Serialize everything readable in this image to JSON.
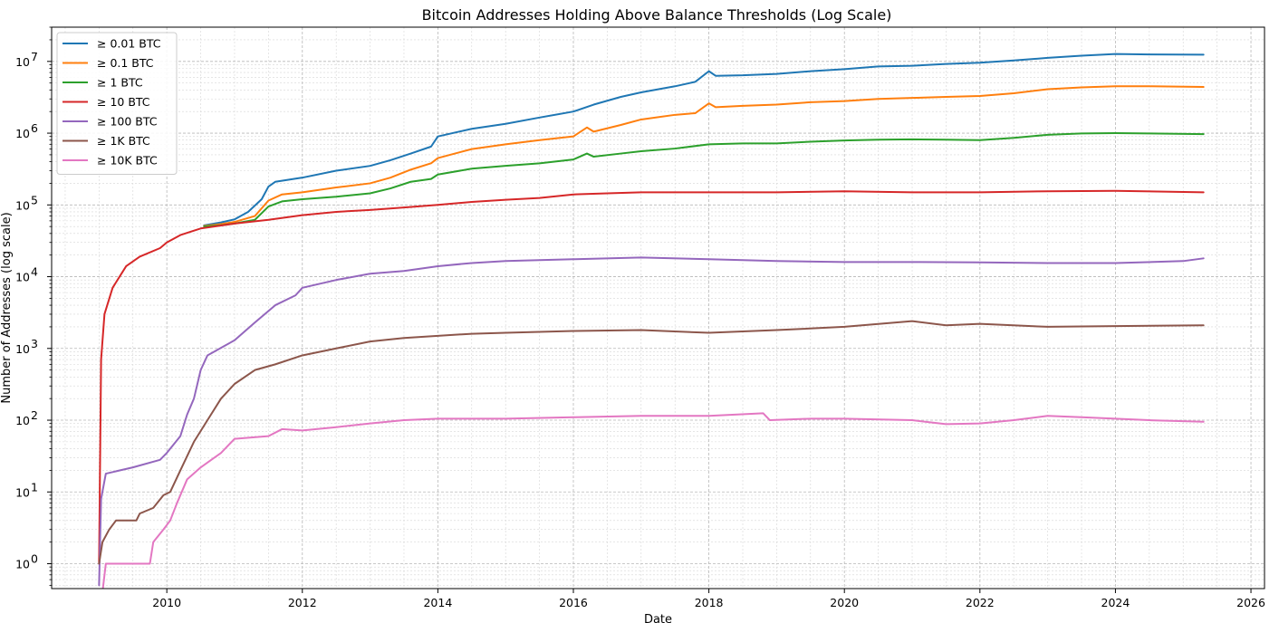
{
  "chart_data": {
    "type": "line",
    "title": "Bitcoin Addresses Holding Above Balance Thresholds (Log Scale)",
    "xlabel": "Date",
    "ylabel": "Number of Addresses (log scale)",
    "y_scale": "log",
    "xlim": [
      2008.3,
      2026.2
    ],
    "ylim": [
      0.45,
      30000000
    ],
    "x_ticks": [
      {
        "value": 2010,
        "label": "2010"
      },
      {
        "value": 2012,
        "label": "2012"
      },
      {
        "value": 2014,
        "label": "2014"
      },
      {
        "value": 2016,
        "label": "2016"
      },
      {
        "value": 2018,
        "label": "2018"
      },
      {
        "value": 2020,
        "label": "2020"
      },
      {
        "value": 2022,
        "label": "2022"
      },
      {
        "value": 2024,
        "label": "2024"
      },
      {
        "value": 2026,
        "label": "2026"
      }
    ],
    "y_ticks": [
      {
        "value": 1,
        "base": "10",
        "exp": "0"
      },
      {
        "value": 10,
        "base": "10",
        "exp": "1"
      },
      {
        "value": 100,
        "base": "10",
        "exp": "2"
      },
      {
        "value": 1000,
        "base": "10",
        "exp": "3"
      },
      {
        "value": 10000,
        "base": "10",
        "exp": "4"
      },
      {
        "value": 100000,
        "base": "10",
        "exp": "5"
      },
      {
        "value": 1000000,
        "base": "10",
        "exp": "6"
      },
      {
        "value": 10000000,
        "base": "10",
        "exp": "7"
      }
    ],
    "grid": "both (major and minor), dashed",
    "legend_position": "top-left",
    "series": [
      {
        "name": "≥ 0.01 BTC",
        "color": "#1f77b4",
        "points": [
          [
            2010.55,
            52000
          ],
          [
            2010.8,
            57000
          ],
          [
            2011.0,
            63000
          ],
          [
            2011.2,
            80000
          ],
          [
            2011.4,
            120000
          ],
          [
            2011.5,
            180000
          ],
          [
            2011.6,
            210000
          ],
          [
            2012.0,
            240000
          ],
          [
            2012.5,
            300000
          ],
          [
            2013.0,
            350000
          ],
          [
            2013.3,
            420000
          ],
          [
            2013.6,
            520000
          ],
          [
            2013.9,
            650000
          ],
          [
            2014.0,
            900000
          ],
          [
            2014.5,
            1150000
          ],
          [
            2015.0,
            1350000
          ],
          [
            2015.5,
            1650000
          ],
          [
            2016.0,
            2000000
          ],
          [
            2016.3,
            2500000
          ],
          [
            2016.7,
            3200000
          ],
          [
            2017.0,
            3700000
          ],
          [
            2017.5,
            4500000
          ],
          [
            2017.8,
            5200000
          ],
          [
            2018.0,
            7300000
          ],
          [
            2018.1,
            6300000
          ],
          [
            2018.5,
            6400000
          ],
          [
            2019.0,
            6700000
          ],
          [
            2019.5,
            7300000
          ],
          [
            2020.0,
            7800000
          ],
          [
            2020.5,
            8500000
          ],
          [
            2021.0,
            8700000
          ],
          [
            2021.5,
            9200000
          ],
          [
            2022.0,
            9600000
          ],
          [
            2022.5,
            10300000
          ],
          [
            2023.0,
            11200000
          ],
          [
            2023.5,
            12000000
          ],
          [
            2024.0,
            12700000
          ],
          [
            2024.5,
            12500000
          ],
          [
            2025.3,
            12400000
          ]
        ]
      },
      {
        "name": "≥ 0.1 BTC",
        "color": "#ff7f0e",
        "points": [
          [
            2010.55,
            51000
          ],
          [
            2010.8,
            54000
          ],
          [
            2011.0,
            58000
          ],
          [
            2011.3,
            70000
          ],
          [
            2011.5,
            115000
          ],
          [
            2011.7,
            140000
          ],
          [
            2012.0,
            150000
          ],
          [
            2012.5,
            175000
          ],
          [
            2013.0,
            200000
          ],
          [
            2013.3,
            240000
          ],
          [
            2013.6,
            310000
          ],
          [
            2013.9,
            380000
          ],
          [
            2014.0,
            450000
          ],
          [
            2014.5,
            600000
          ],
          [
            2015.0,
            700000
          ],
          [
            2015.5,
            800000
          ],
          [
            2016.0,
            900000
          ],
          [
            2016.2,
            1200000
          ],
          [
            2016.3,
            1050000
          ],
          [
            2016.7,
            1300000
          ],
          [
            2017.0,
            1550000
          ],
          [
            2017.5,
            1800000
          ],
          [
            2017.8,
            1900000
          ],
          [
            2018.0,
            2600000
          ],
          [
            2018.1,
            2300000
          ],
          [
            2018.5,
            2400000
          ],
          [
            2019.0,
            2500000
          ],
          [
            2019.5,
            2700000
          ],
          [
            2020.0,
            2800000
          ],
          [
            2020.5,
            3000000
          ],
          [
            2021.0,
            3100000
          ],
          [
            2021.5,
            3200000
          ],
          [
            2022.0,
            3300000
          ],
          [
            2022.5,
            3600000
          ],
          [
            2023.0,
            4100000
          ],
          [
            2023.5,
            4350000
          ],
          [
            2024.0,
            4500000
          ],
          [
            2024.5,
            4500000
          ],
          [
            2025.3,
            4400000
          ]
        ]
      },
      {
        "name": "≥ 1 BTC",
        "color": "#2ca02c",
        "points": [
          [
            2010.55,
            50000
          ],
          [
            2010.8,
            52000
          ],
          [
            2011.0,
            55000
          ],
          [
            2011.3,
            62000
          ],
          [
            2011.5,
            95000
          ],
          [
            2011.7,
            112000
          ],
          [
            2012.0,
            120000
          ],
          [
            2012.5,
            130000
          ],
          [
            2013.0,
            145000
          ],
          [
            2013.3,
            170000
          ],
          [
            2013.6,
            210000
          ],
          [
            2013.9,
            230000
          ],
          [
            2014.0,
            265000
          ],
          [
            2014.5,
            320000
          ],
          [
            2015.0,
            350000
          ],
          [
            2015.5,
            380000
          ],
          [
            2016.0,
            430000
          ],
          [
            2016.2,
            520000
          ],
          [
            2016.3,
            470000
          ],
          [
            2016.7,
            520000
          ],
          [
            2017.0,
            560000
          ],
          [
            2017.5,
            610000
          ],
          [
            2018.0,
            700000
          ],
          [
            2018.5,
            720000
          ],
          [
            2019.0,
            720000
          ],
          [
            2019.5,
            760000
          ],
          [
            2020.0,
            790000
          ],
          [
            2020.5,
            810000
          ],
          [
            2021.0,
            820000
          ],
          [
            2021.5,
            810000
          ],
          [
            2022.0,
            800000
          ],
          [
            2022.5,
            860000
          ],
          [
            2023.0,
            950000
          ],
          [
            2023.5,
            990000
          ],
          [
            2024.0,
            1000000
          ],
          [
            2024.5,
            990000
          ],
          [
            2025.3,
            970000
          ]
        ]
      },
      {
        "name": "≥ 10 BTC",
        "color": "#d62728",
        "points": [
          [
            2009.0,
            1
          ],
          [
            2009.03,
            700
          ],
          [
            2009.08,
            3000
          ],
          [
            2009.2,
            7000
          ],
          [
            2009.4,
            14000
          ],
          [
            2009.6,
            19000
          ],
          [
            2009.9,
            25000
          ],
          [
            2010.0,
            30000
          ],
          [
            2010.2,
            38000
          ],
          [
            2010.5,
            47000
          ],
          [
            2011.0,
            55000
          ],
          [
            2011.5,
            62000
          ],
          [
            2012.0,
            72000
          ],
          [
            2012.5,
            80000
          ],
          [
            2013.0,
            85000
          ],
          [
            2013.5,
            92000
          ],
          [
            2014.0,
            100000
          ],
          [
            2014.5,
            110000
          ],
          [
            2015.0,
            118000
          ],
          [
            2015.5,
            125000
          ],
          [
            2016.0,
            140000
          ],
          [
            2016.5,
            145000
          ],
          [
            2017.0,
            150000
          ],
          [
            2018.0,
            150000
          ],
          [
            2019.0,
            150000
          ],
          [
            2020.0,
            155000
          ],
          [
            2021.0,
            150000
          ],
          [
            2022.0,
            150000
          ],
          [
            2023.0,
            155000
          ],
          [
            2024.0,
            157000
          ],
          [
            2025.3,
            150000
          ]
        ]
      },
      {
        "name": "≥ 100 BTC",
        "color": "#9467bd",
        "points": [
          [
            2009.0,
            0.5
          ],
          [
            2009.03,
            8
          ],
          [
            2009.1,
            18
          ],
          [
            2009.5,
            22
          ],
          [
            2009.9,
            28
          ],
          [
            2010.0,
            35
          ],
          [
            2010.2,
            60
          ],
          [
            2010.3,
            120
          ],
          [
            2010.4,
            200
          ],
          [
            2010.5,
            500
          ],
          [
            2010.6,
            800
          ],
          [
            2011.0,
            1300
          ],
          [
            2011.3,
            2300
          ],
          [
            2011.6,
            4000
          ],
          [
            2011.9,
            5500
          ],
          [
            2012.0,
            7000
          ],
          [
            2012.5,
            9000
          ],
          [
            2013.0,
            11000
          ],
          [
            2013.5,
            12000
          ],
          [
            2014.0,
            14000
          ],
          [
            2014.5,
            15500
          ],
          [
            2015.0,
            16500
          ],
          [
            2016.0,
            17500
          ],
          [
            2017.0,
            18500
          ],
          [
            2018.0,
            17500
          ],
          [
            2019.0,
            16500
          ],
          [
            2020.0,
            16000
          ],
          [
            2021.0,
            16000
          ],
          [
            2022.0,
            15800
          ],
          [
            2023.0,
            15500
          ],
          [
            2024.0,
            15500
          ],
          [
            2025.0,
            16500
          ],
          [
            2025.3,
            18000
          ]
        ]
      },
      {
        "name": "≥ 1K BTC",
        "color": "#8c564b",
        "points": [
          [
            2009.0,
            1
          ],
          [
            2009.05,
            2
          ],
          [
            2009.15,
            3
          ],
          [
            2009.25,
            4
          ],
          [
            2009.55,
            4
          ],
          [
            2009.6,
            5
          ],
          [
            2009.8,
            6
          ],
          [
            2009.95,
            9
          ],
          [
            2010.05,
            10
          ],
          [
            2010.2,
            20
          ],
          [
            2010.4,
            50
          ],
          [
            2010.6,
            100
          ],
          [
            2010.8,
            200
          ],
          [
            2011.0,
            320
          ],
          [
            2011.3,
            500
          ],
          [
            2011.6,
            600
          ],
          [
            2012.0,
            800
          ],
          [
            2012.5,
            1000
          ],
          [
            2013.0,
            1250
          ],
          [
            2013.5,
            1400
          ],
          [
            2014.0,
            1500
          ],
          [
            2014.5,
            1600
          ],
          [
            2015.0,
            1650
          ],
          [
            2016.0,
            1750
          ],
          [
            2017.0,
            1800
          ],
          [
            2018.0,
            1650
          ],
          [
            2019.0,
            1800
          ],
          [
            2020.0,
            2000
          ],
          [
            2021.0,
            2400
          ],
          [
            2021.5,
            2100
          ],
          [
            2022.0,
            2200
          ],
          [
            2023.0,
            2000
          ],
          [
            2024.0,
            2050
          ],
          [
            2025.3,
            2100
          ]
        ]
      },
      {
        "name": "≥ 10K BTC",
        "color": "#e377c2",
        "points": [
          [
            2009.05,
            0.4
          ],
          [
            2009.1,
            1
          ],
          [
            2009.75,
            1
          ],
          [
            2009.8,
            2
          ],
          [
            2009.95,
            3
          ],
          [
            2010.05,
            4
          ],
          [
            2010.15,
            7
          ],
          [
            2010.3,
            15
          ],
          [
            2010.5,
            22
          ],
          [
            2010.8,
            35
          ],
          [
            2011.0,
            55
          ],
          [
            2011.5,
            60
          ],
          [
            2011.7,
            75
          ],
          [
            2012.0,
            72
          ],
          [
            2012.5,
            80
          ],
          [
            2013.0,
            90
          ],
          [
            2013.5,
            100
          ],
          [
            2014.0,
            105
          ],
          [
            2015.0,
            105
          ],
          [
            2016.0,
            110
          ],
          [
            2017.0,
            115
          ],
          [
            2018.0,
            115
          ],
          [
            2018.8,
            125
          ],
          [
            2018.9,
            100
          ],
          [
            2019.5,
            105
          ],
          [
            2020.0,
            105
          ],
          [
            2021.0,
            100
          ],
          [
            2021.5,
            88
          ],
          [
            2022.0,
            90
          ],
          [
            2022.5,
            100
          ],
          [
            2023.0,
            115
          ],
          [
            2023.5,
            110
          ],
          [
            2024.0,
            105
          ],
          [
            2024.5,
            100
          ],
          [
            2025.3,
            95
          ]
        ]
      }
    ]
  }
}
